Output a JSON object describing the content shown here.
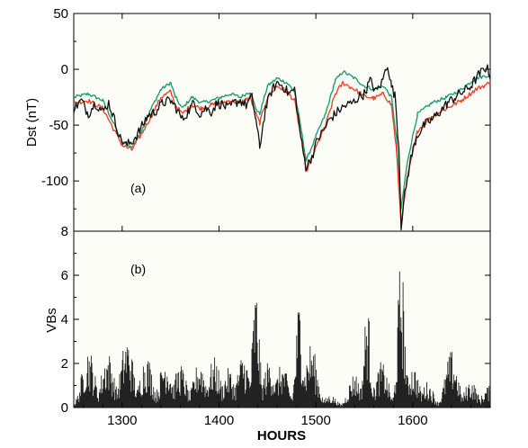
{
  "chart_data": [
    {
      "type": "line",
      "panel_label": "(a)",
      "ylabel": "Dst (nT)",
      "xlim": [
        1250,
        1680
      ],
      "ylim": [
        -145,
        50
      ],
      "yticks": [
        50,
        0,
        -50,
        -100
      ],
      "xticks": [
        1300,
        1400,
        1500,
        1600
      ],
      "xtick_labels": [
        "1300",
        "1400",
        "1500",
        "1600"
      ],
      "grid": false,
      "legend": "none",
      "series": [
        {
          "color": "#1f9e72",
          "x": [
            1250,
            1265,
            1280,
            1292,
            1300,
            1310,
            1320,
            1330,
            1340,
            1350,
            1355,
            1362,
            1372,
            1382,
            1392,
            1402,
            1412,
            1422,
            1432,
            1438,
            1442,
            1450,
            1460,
            1470,
            1478,
            1486,
            1490,
            1500,
            1510,
            1520,
            1528,
            1540,
            1550,
            1560,
            1570,
            1578,
            1583,
            1588,
            1595,
            1605,
            1620,
            1635,
            1650,
            1665,
            1680
          ],
          "y": [
            -25,
            -22,
            -28,
            -50,
            -65,
            -70,
            -55,
            -35,
            -18,
            -12,
            -25,
            -35,
            -25,
            -30,
            -28,
            -25,
            -22,
            -25,
            -20,
            -35,
            -40,
            -15,
            -8,
            -12,
            -20,
            -60,
            -82,
            -60,
            -40,
            -10,
            -2,
            -8,
            -15,
            -18,
            -15,
            -25,
            -60,
            -125,
            -80,
            -40,
            -30,
            -25,
            -18,
            -8,
            -5
          ]
        },
        {
          "color": "#e8462b",
          "x": [
            1250,
            1265,
            1280,
            1292,
            1300,
            1310,
            1320,
            1330,
            1340,
            1350,
            1355,
            1362,
            1372,
            1382,
            1392,
            1402,
            1412,
            1422,
            1432,
            1438,
            1442,
            1450,
            1460,
            1470,
            1478,
            1486,
            1490,
            1500,
            1510,
            1520,
            1528,
            1540,
            1550,
            1560,
            1570,
            1578,
            1583,
            1588,
            1595,
            1605,
            1620,
            1635,
            1650,
            1665,
            1680
          ],
          "y": [
            -30,
            -28,
            -35,
            -55,
            -68,
            -72,
            -58,
            -42,
            -25,
            -20,
            -32,
            -40,
            -32,
            -35,
            -32,
            -30,
            -28,
            -30,
            -25,
            -40,
            -48,
            -25,
            -15,
            -20,
            -28,
            -68,
            -92,
            -70,
            -50,
            -22,
            -12,
            -18,
            -24,
            -26,
            -22,
            -32,
            -70,
            -138,
            -95,
            -55,
            -42,
            -35,
            -28,
            -18,
            -12
          ]
        },
        {
          "color": "#111111",
          "x": [
            1250,
            1258,
            1265,
            1272,
            1280,
            1286,
            1292,
            1298,
            1304,
            1310,
            1318,
            1326,
            1334,
            1342,
            1350,
            1356,
            1362,
            1368,
            1374,
            1380,
            1386,
            1392,
            1398,
            1404,
            1410,
            1416,
            1422,
            1428,
            1434,
            1438,
            1442,
            1448,
            1454,
            1460,
            1466,
            1472,
            1478,
            1482,
            1486,
            1490,
            1496,
            1502,
            1508,
            1514,
            1520,
            1526,
            1532,
            1538,
            1544,
            1550,
            1556,
            1562,
            1568,
            1574,
            1578,
            1582,
            1586,
            1588,
            1592,
            1598,
            1604,
            1612,
            1620,
            1628,
            1636,
            1644,
            1652,
            1660,
            1668,
            1676,
            1680
          ],
          "y": [
            -35,
            -28,
            -40,
            -30,
            -38,
            -30,
            -45,
            -62,
            -68,
            -65,
            -55,
            -42,
            -38,
            -30,
            -28,
            -35,
            -45,
            -38,
            -30,
            -40,
            -35,
            -38,
            -30,
            -32,
            -35,
            -30,
            -28,
            -32,
            -25,
            -45,
            -70,
            -35,
            -20,
            -12,
            -15,
            -22,
            -18,
            -45,
            -70,
            -88,
            -78,
            -62,
            -55,
            -45,
            -40,
            -35,
            -32,
            -30,
            -25,
            -22,
            -10,
            -20,
            -12,
            5,
            -15,
            -25,
            -75,
            -140,
            -110,
            -80,
            -60,
            -50,
            -45,
            -38,
            -30,
            -25,
            -20,
            -15,
            -5,
            2,
            -5
          ]
        }
      ]
    },
    {
      "type": "bar",
      "panel_label": "(b)",
      "ylabel": "VBs",
      "xlabel": "HOURS",
      "xlim": [
        1250,
        1680
      ],
      "ylim": [
        0,
        8
      ],
      "yticks": [
        0,
        2,
        4,
        6,
        8
      ],
      "xticks": [
        1300,
        1400,
        1500,
        1600
      ],
      "xtick_labels": [
        "1300",
        "1400",
        "1500",
        "1600"
      ],
      "grid": false,
      "legend": "none",
      "bursts": [
        {
          "x": 1265,
          "value": 2.8
        },
        {
          "x": 1285,
          "value": 2.6
        },
        {
          "x": 1305,
          "value": 3.3
        },
        {
          "x": 1325,
          "value": 2.5
        },
        {
          "x": 1345,
          "value": 2.4
        },
        {
          "x": 1360,
          "value": 2.0
        },
        {
          "x": 1380,
          "value": 2.2
        },
        {
          "x": 1395,
          "value": 2.3
        },
        {
          "x": 1410,
          "value": 1.8
        },
        {
          "x": 1425,
          "value": 2.5
        },
        {
          "x": 1438,
          "value": 5.6
        },
        {
          "x": 1452,
          "value": 2.2
        },
        {
          "x": 1465,
          "value": 2.0
        },
        {
          "x": 1483,
          "value": 5.1
        },
        {
          "x": 1495,
          "value": 3.0
        },
        {
          "x": 1515,
          "value": 0.6
        },
        {
          "x": 1540,
          "value": 1.6
        },
        {
          "x": 1553,
          "value": 4.8
        },
        {
          "x": 1568,
          "value": 2.1
        },
        {
          "x": 1588,
          "value": 7.0
        },
        {
          "x": 1600,
          "value": 2.0
        },
        {
          "x": 1615,
          "value": 1.2
        },
        {
          "x": 1640,
          "value": 2.6
        },
        {
          "x": 1660,
          "value": 1.3
        },
        {
          "x": 1678,
          "value": 1.0
        }
      ]
    }
  ]
}
